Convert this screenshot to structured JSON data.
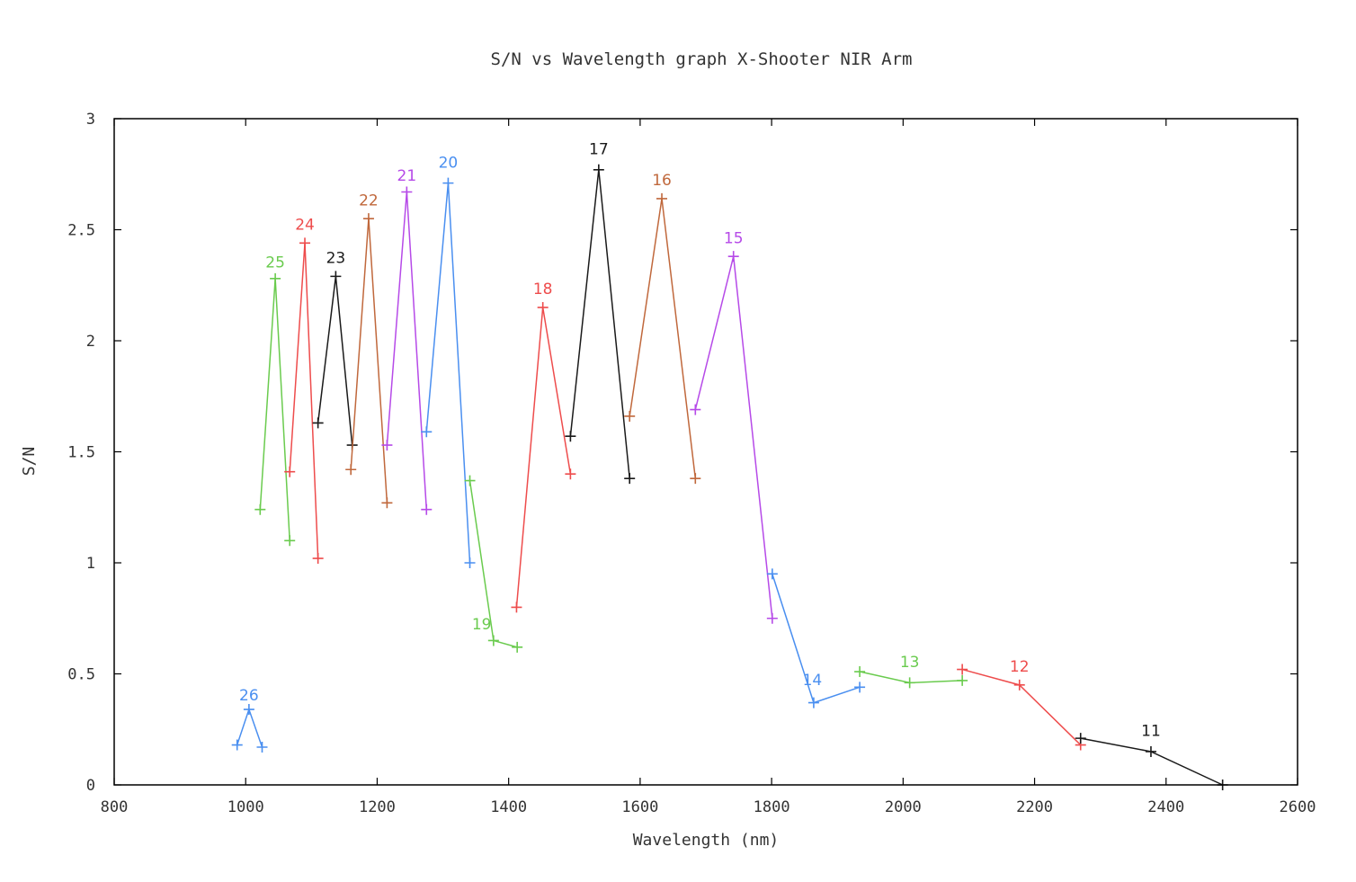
{
  "chart_data": {
    "type": "line",
    "title": "S/N vs Wavelength graph X-Shooter NIR Arm",
    "xlabel": "Wavelength (nm)",
    "ylabel": "S/N",
    "xlim": [
      800,
      2600
    ],
    "ylim": [
      0,
      3
    ],
    "xticks": [
      "800",
      "1000",
      "1200",
      "1400",
      "1600",
      "1800",
      "2000",
      "2200",
      "2400",
      "2600"
    ],
    "yticks": [
      "0",
      "0.5",
      "1",
      "1.5",
      "2",
      "2.5",
      "3"
    ],
    "xtick_values": [
      800,
      1000,
      1200,
      1400,
      1600,
      1800,
      2000,
      2200,
      2400,
      2600
    ],
    "ytick_values": [
      0,
      0.5,
      1,
      1.5,
      2,
      2.5,
      3
    ],
    "grid": false,
    "legend": "none",
    "marker": "plus",
    "series": [
      {
        "name": "26",
        "color": "#4a8ff0",
        "label": "26",
        "label_at": [
          1005,
          0.38
        ],
        "x": [
          987,
          1005,
          1025
        ],
        "y": [
          0.18,
          0.34,
          0.17
        ]
      },
      {
        "name": "25",
        "color": "#6acb4e",
        "label": "25",
        "label_at": [
          1045,
          2.33
        ],
        "x": [
          1022,
          1045,
          1067
        ],
        "y": [
          1.24,
          2.28,
          1.1
        ]
      },
      {
        "name": "24",
        "color": "#ee4c4c",
        "label": "24",
        "label_at": [
          1090,
          2.5
        ],
        "x": [
          1067,
          1090,
          1110
        ],
        "y": [
          1.41,
          2.44,
          1.02
        ]
      },
      {
        "name": "23",
        "color": "#1a1a1a",
        "label": "23",
        "label_at": [
          1137,
          2.35
        ],
        "x": [
          1110,
          1137,
          1162
        ],
        "y": [
          1.63,
          2.29,
          1.53
        ]
      },
      {
        "name": "22",
        "color": "#c0683c",
        "label": "22",
        "label_at": [
          1187,
          2.61
        ],
        "x": [
          1160,
          1187,
          1215
        ],
        "y": [
          1.42,
          2.55,
          1.27
        ]
      },
      {
        "name": "21",
        "color": "#b64ae8",
        "label": "21",
        "label_at": [
          1245,
          2.72
        ],
        "x": [
          1215,
          1245,
          1275
        ],
        "y": [
          1.53,
          2.67,
          1.24
        ]
      },
      {
        "name": "20",
        "color": "#4a8ff0",
        "label": "20",
        "label_at": [
          1308,
          2.78
        ],
        "x": [
          1275,
          1308,
          1341
        ],
        "y": [
          1.59,
          2.71,
          1.0
        ]
      },
      {
        "name": "19",
        "color": "#6acb4e",
        "label": "19",
        "label_at": [
          1359,
          0.7
        ],
        "x": [
          1341,
          1377,
          1413
        ],
        "y": [
          1.37,
          0.65,
          0.62
        ]
      },
      {
        "name": "18",
        "color": "#ee4c4c",
        "label": "18",
        "label_at": [
          1452,
          2.21
        ],
        "x": [
          1412,
          1452,
          1494
        ],
        "y": [
          0.8,
          2.15,
          1.4
        ]
      },
      {
        "name": "17",
        "color": "#1a1a1a",
        "label": "17",
        "label_at": [
          1537,
          2.84
        ],
        "x": [
          1494,
          1537,
          1584
        ],
        "y": [
          1.57,
          2.77,
          1.38
        ]
      },
      {
        "name": "16",
        "color": "#c0683c",
        "label": "16",
        "label_at": [
          1633,
          2.7
        ],
        "x": [
          1584,
          1633,
          1684
        ],
        "y": [
          1.66,
          2.64,
          1.38
        ]
      },
      {
        "name": "15",
        "color": "#b64ae8",
        "label": "15",
        "label_at": [
          1742,
          2.44
        ],
        "x": [
          1684,
          1742,
          1801
        ],
        "y": [
          1.69,
          2.38,
          0.75
        ]
      },
      {
        "name": "14",
        "color": "#4a8ff0",
        "label": "14",
        "label_at": [
          1862,
          0.45
        ],
        "x": [
          1801,
          1864,
          1934
        ],
        "y": [
          0.95,
          0.37,
          0.44
        ]
      },
      {
        "name": "13",
        "color": "#6acb4e",
        "label": "13",
        "label_at": [
          2010,
          0.53
        ],
        "x": [
          1934,
          2010,
          2090
        ],
        "y": [
          0.51,
          0.46,
          0.47
        ]
      },
      {
        "name": "12",
        "color": "#ee4c4c",
        "label": "12",
        "label_at": [
          2177,
          0.51
        ],
        "x": [
          2090,
          2177,
          2270
        ],
        "y": [
          0.52,
          0.45,
          0.18
        ]
      },
      {
        "name": "11",
        "color": "#1a1a1a",
        "label": "11",
        "label_at": [
          2377,
          0.22
        ],
        "x": [
          2270,
          2377,
          2486
        ],
        "y": [
          0.21,
          0.15,
          0.0
        ]
      }
    ]
  }
}
